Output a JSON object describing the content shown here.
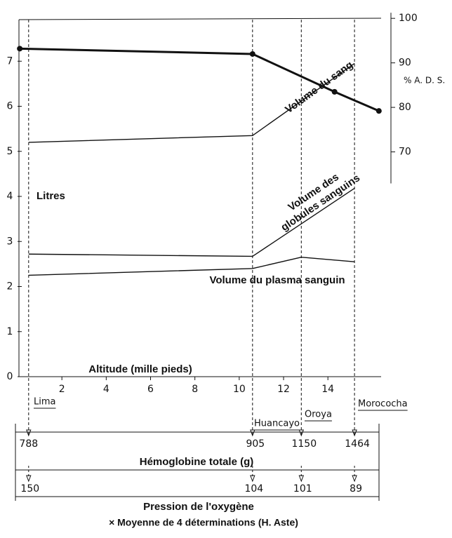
{
  "chart_data": {
    "type": "line",
    "xlabel": "Altitude (mille pieds)",
    "ylabel": "Litres",
    "y2label": "% A. D. S.",
    "xlim": [
      0,
      16.4
    ],
    "xticks": [
      2,
      4,
      6,
      8,
      10,
      12,
      14
    ],
    "ylim": [
      0,
      8
    ],
    "yticks": [
      0,
      1,
      2,
      3,
      4,
      5,
      6,
      7
    ],
    "y2lim": [
      19.5,
      100.5
    ],
    "y2ticks": [
      70,
      80,
      90,
      100
    ],
    "series": [
      {
        "name": "Volume du sang",
        "color": "#111111",
        "x": [
          0.5,
          10.6,
          15.2
        ],
        "values": [
          5.2,
          5.35,
          6.95
        ]
      },
      {
        "name": "Volume des globules sanguins",
        "color": "#111111",
        "x": [
          0.5,
          10.6,
          15.2
        ],
        "values": [
          2.72,
          2.67,
          4.18
        ]
      },
      {
        "name": "Volume du plasma sanguin",
        "color": "#111111",
        "x": [
          0.5,
          10.6,
          12.8,
          15.2
        ],
        "values": [
          2.25,
          2.4,
          2.65,
          2.55
        ]
      },
      {
        "name": "% A. D. S.",
        "color": "#111111",
        "axis": "y2",
        "x": [
          0.1,
          10.6,
          14.3,
          16.3
        ],
        "values": [
          93.2,
          92,
          83.5,
          79.2
        ]
      }
    ],
    "stations": [
      {
        "name": "Lima",
        "x": 0.5
      },
      {
        "name": "Huancayo",
        "x": 10.6
      },
      {
        "name": "Oroya",
        "x": 12.8
      },
      {
        "name": "Morococha",
        "x": 15.2
      }
    ],
    "hemoglobin": {
      "label": "Hémoglobine totale (g)",
      "values": [
        788,
        905,
        1150,
        1464
      ]
    },
    "oxygen": {
      "label": "Pression de l'oxygène",
      "values": [
        150,
        104,
        101,
        89
      ]
    },
    "note": "× Moyenne de 4 déterminations (H. Aste)"
  }
}
